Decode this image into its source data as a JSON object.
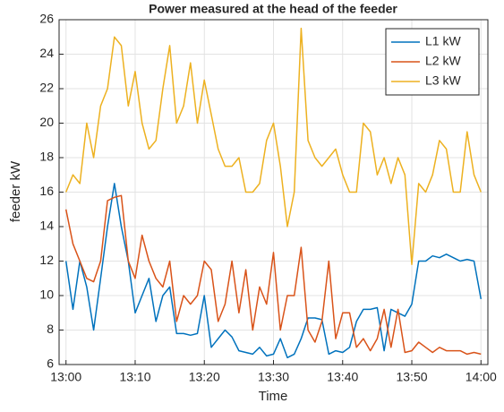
{
  "chart_data": {
    "type": "line",
    "title": "Power measured at the head of the feeder",
    "xlabel": "Time",
    "ylabel": "feeder kW",
    "x": [
      "13:00",
      "13:01",
      "13:02",
      "13:03",
      "13:04",
      "13:05",
      "13:06",
      "13:07",
      "13:08",
      "13:09",
      "13:10",
      "13:11",
      "13:12",
      "13:13",
      "13:14",
      "13:15",
      "13:16",
      "13:17",
      "13:18",
      "13:19",
      "13:20",
      "13:21",
      "13:22",
      "13:23",
      "13:24",
      "13:25",
      "13:26",
      "13:27",
      "13:28",
      "13:29",
      "13:30",
      "13:31",
      "13:32",
      "13:33",
      "13:34",
      "13:35",
      "13:36",
      "13:37",
      "13:38",
      "13:39",
      "13:40",
      "13:41",
      "13:42",
      "13:43",
      "13:44",
      "13:45",
      "13:46",
      "13:47",
      "13:48",
      "13:49",
      "13:50",
      "13:51",
      "13:52",
      "13:53",
      "13:54",
      "13:55",
      "13:56",
      "13:57",
      "13:58",
      "13:59",
      "14:00"
    ],
    "series": [
      {
        "name": "L1 kW",
        "color": "#0072bd",
        "values": [
          12,
          9.2,
          12,
          10.5,
          8,
          11,
          14,
          16.5,
          14,
          12,
          9,
          10,
          11,
          8.5,
          10,
          10.5,
          7.8,
          7.8,
          7.7,
          7.8,
          10,
          7,
          7.5,
          8,
          7.6,
          6.8,
          6.7,
          6.6,
          7,
          6.5,
          6.6,
          7.5,
          6.4,
          6.6,
          7.5,
          8.7,
          8.7,
          8.6,
          6.6,
          6.8,
          6.7,
          7,
          8.5,
          9.2,
          9.2,
          9.3,
          6.8,
          9.2,
          9,
          8.8,
          9.5,
          12,
          12,
          12.3,
          12.2,
          12.4,
          12.2,
          12,
          12.1,
          12,
          9.8
        ]
      },
      {
        "name": "L2 kW",
        "color": "#d95319",
        "values": [
          15,
          13,
          12,
          11,
          10.8,
          12,
          15.5,
          15.7,
          15.8,
          12,
          11,
          13.5,
          12,
          11,
          10.5,
          12,
          8.5,
          10,
          9.5,
          10,
          12,
          11.5,
          8.5,
          9.5,
          12,
          9,
          11.5,
          8,
          10.5,
          9.5,
          12.5,
          8,
          10,
          10,
          12.8,
          8,
          7.3,
          8.5,
          12,
          7.5,
          9,
          9,
          7,
          7.5,
          6.8,
          7.5,
          9.2,
          7,
          9.2,
          6.7,
          6.8,
          7.3,
          7,
          6.7,
          7,
          6.8,
          6.8,
          6.8,
          6.6,
          6.7,
          6.6
        ]
      },
      {
        "name": "L3 kW",
        "color": "#edb120",
        "values": [
          16,
          17,
          16.5,
          20,
          18,
          21,
          22,
          25,
          24.5,
          21,
          23,
          20,
          18.5,
          19,
          22,
          24.5,
          20,
          21,
          23.5,
          20,
          22.5,
          20.5,
          18.5,
          17.5,
          17.5,
          18,
          16,
          16,
          16.5,
          19,
          20,
          17.5,
          14,
          16,
          25.5,
          19,
          18,
          17.5,
          18,
          18.5,
          17,
          16,
          16,
          20,
          19.5,
          17,
          18,
          16.5,
          18,
          17,
          11.8,
          16.5,
          16,
          17,
          19,
          18.5,
          16,
          16,
          19.5,
          17,
          16
        ]
      }
    ],
    "xlim": [
      "12:59",
      "14:01"
    ],
    "xticks": [
      "13:00",
      "13:10",
      "13:20",
      "13:30",
      "13:40",
      "13:50",
      "14:00"
    ],
    "ylim": [
      6,
      26
    ],
    "yticks": [
      6,
      8,
      10,
      12,
      14,
      16,
      18,
      20,
      22,
      24,
      26
    ],
    "grid": true,
    "legend": "northeast"
  }
}
